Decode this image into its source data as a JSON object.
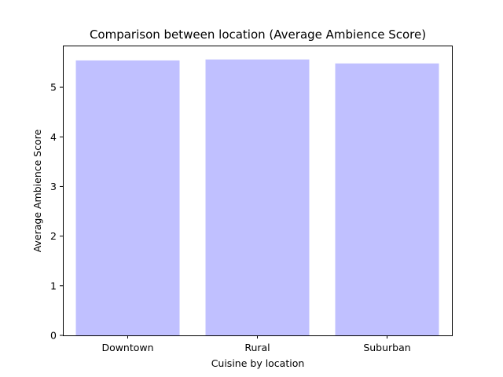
{
  "chart_data": {
    "type": "bar",
    "title": "Comparison between location (Average Ambience Score)",
    "xlabel": "Cuisine by location",
    "ylabel": "Average Ambience Score",
    "categories": [
      "Downtown",
      "Rural",
      "Suburban"
    ],
    "values": [
      5.54,
      5.56,
      5.48
    ],
    "ylim": [
      0,
      5.84
    ],
    "yticks": [
      "0",
      "1",
      "2",
      "3",
      "4",
      "5"
    ],
    "bar_color": "#c0c0ff",
    "grid": false,
    "legend": "none"
  }
}
